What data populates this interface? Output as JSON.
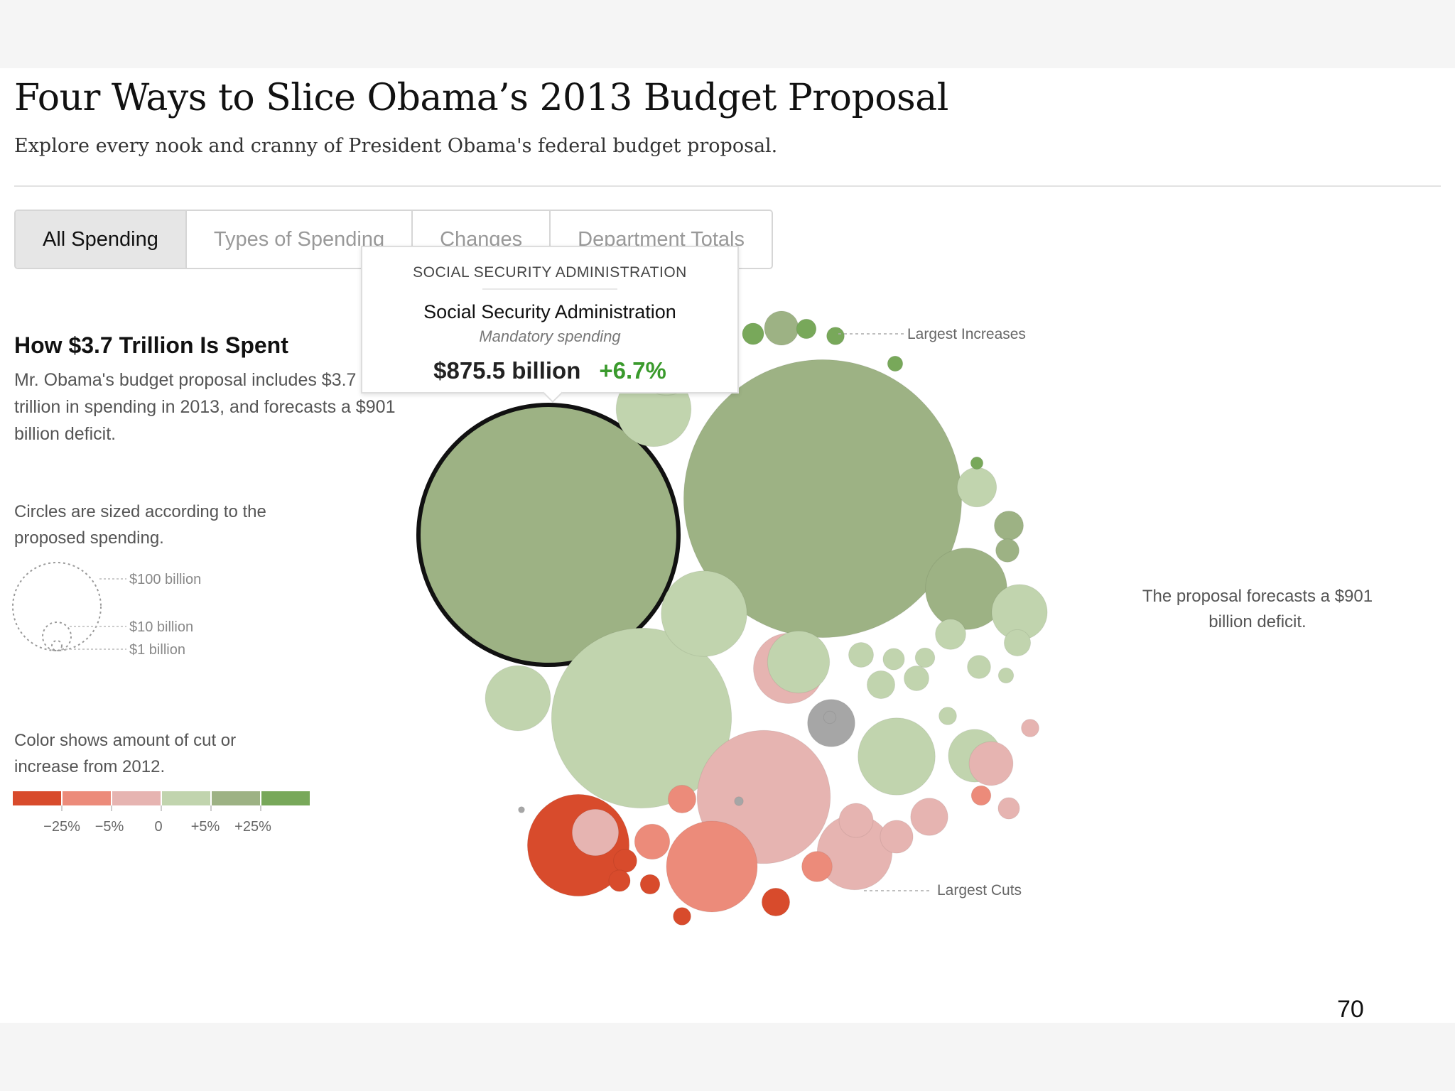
{
  "header": {
    "title": "Four Ways to Slice Obama’s 2013 Budget Proposal",
    "subtitle": "Explore every nook and cranny of President Obama's federal budget proposal."
  },
  "tabs": [
    {
      "label": "All Spending",
      "active": true
    },
    {
      "label": "Types of Spending",
      "active": false
    },
    {
      "label": "Changes",
      "active": false
    },
    {
      "label": "Department Totals",
      "active": false
    }
  ],
  "sidebar": {
    "heading": "How $3.7 Trillion Is Spent",
    "intro": "Mr. Obama's budget proposal includes $3.7 trillion in spending in 2013, and forecasts a $901 billion deficit.",
    "size_note": "Circles are sized according to the proposed spending.",
    "size_legend": [
      "$100 billion",
      "$10 billion",
      "$1 billion"
    ],
    "color_note": "Color shows amount of cut or increase from 2012.",
    "color_legend": {
      "colors": [
        "#d84b2c",
        "#ec8b7a",
        "#e6b4b1",
        "#c1d4ae",
        "#9db284",
        "#78a85a"
      ],
      "ticks": [
        "−25%",
        "−5%",
        "0",
        "+5%",
        "+25%"
      ]
    }
  },
  "annotations": {
    "increases": "Largest Increases",
    "cuts": "Largest Cuts",
    "deficit": "The proposal forecasts a $901 billion deficit."
  },
  "tooltip": {
    "department": "SOCIAL SECURITY ADMINISTRATION",
    "name": "Social Security Administration",
    "type": "Mandatory spending",
    "amount": "$875.5 billion",
    "change": "+6.7%"
  },
  "page_number": "70",
  "chart_data": {
    "type": "bubble",
    "title": "How $3.7 Trillion Is Spent",
    "size_unit": "billion dollars",
    "color_scale": {
      "thresholds_pct": [
        -25,
        -5,
        0,
        5,
        25
      ],
      "colors": [
        "#d84b2c",
        "#ec8b7a",
        "#e6b4b1",
        "#c1d4ae",
        "#9db284",
        "#78a85a"
      ],
      "neutral_color": "#a6a6a6"
    },
    "highlighted": "Social Security Administration",
    "bubbles": [
      {
        "value": 875.5,
        "change": 6.7,
        "label": "Social Security Administration"
      },
      {
        "value": 1000,
        "change": 6
      },
      {
        "value": 420,
        "change": 2
      },
      {
        "value": 230,
        "change": -3
      },
      {
        "value": 95,
        "change": 3
      },
      {
        "value": 73,
        "change": 2
      },
      {
        "value": 77,
        "change": 1
      },
      {
        "value": 134,
        "change": -30
      },
      {
        "value": 107,
        "change": -10
      },
      {
        "value": 73,
        "change": -2
      },
      {
        "value": 64,
        "change": -1
      },
      {
        "value": 86,
        "change": 7
      },
      {
        "value": 55,
        "change": 2
      },
      {
        "value": 50,
        "change": 2
      },
      {
        "value": 35,
        "change": 3
      },
      {
        "value": 29,
        "change": 0
      },
      {
        "value": 28,
        "change": -2
      },
      {
        "value": 40,
        "change": 2
      },
      {
        "value": 20,
        "change": 2
      },
      {
        "value": 36,
        "change": 2
      },
      {
        "value": 15,
        "change": -4
      },
      {
        "value": 25,
        "change": -2
      },
      {
        "value": 14,
        "change": -3
      },
      {
        "value": 18,
        "change": -3
      },
      {
        "value": 12,
        "change": -8
      },
      {
        "value": 10,
        "change": -8
      },
      {
        "value": 16,
        "change": -12
      },
      {
        "value": 7,
        "change": -30
      },
      {
        "value": 6,
        "change": -30
      },
      {
        "value": 5,
        "change": -30
      },
      {
        "value": 4,
        "change": -30
      },
      {
        "value": 10,
        "change": -26
      },
      {
        "value": 15,
        "change": 8
      },
      {
        "value": 6,
        "change": 30
      },
      {
        "value": 5,
        "change": 30
      },
      {
        "value": 4,
        "change": 30
      },
      {
        "value": 3,
        "change": 30
      },
      {
        "value": 2,
        "change": 30
      },
      {
        "value": 11,
        "change": 8
      },
      {
        "value": 7,
        "change": 8
      },
      {
        "value": 8,
        "change": 3
      },
      {
        "value": 6,
        "change": 3
      },
      {
        "value": 5,
        "change": 3
      },
      {
        "value": 12,
        "change": 3
      },
      {
        "value": 10,
        "change": 2
      },
      {
        "value": 7,
        "change": 2
      },
      {
        "value": 9,
        "change": 2
      },
      {
        "value": 8,
        "change": 2
      },
      {
        "value": 4,
        "change": 2
      },
      {
        "value": 3,
        "change": 2
      },
      {
        "value": 6,
        "change": -2
      },
      {
        "value": 4,
        "change": -2
      },
      {
        "value": 5,
        "change": -8
      },
      {
        "value": 2,
        "change": 0
      },
      {
        "value": 1,
        "change": 0
      },
      {
        "value": 0.5,
        "change": 0
      }
    ]
  }
}
